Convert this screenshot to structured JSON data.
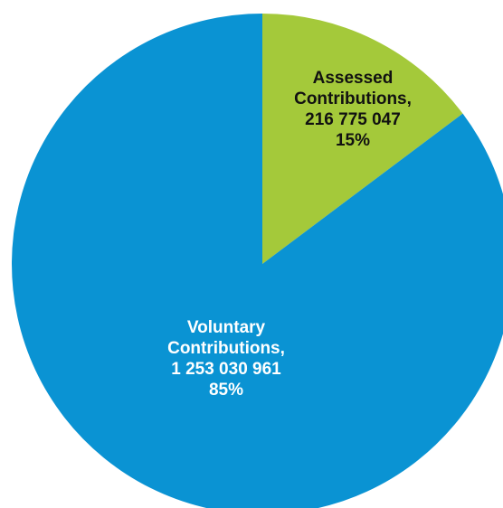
{
  "chart_data": {
    "type": "pie",
    "slices": [
      {
        "label": "Assessed Contributions,",
        "value": 216775047,
        "value_text": "216 775 047",
        "percent": 15,
        "percent_text": "15%",
        "color": "#a4c93a",
        "label_color": "#111111"
      },
      {
        "label": "Voluntary Contributions,",
        "value": 1253030961,
        "value_text": "1 253 030 961",
        "percent": 85,
        "percent_text": "85%",
        "color": "#0a93d3",
        "label_color": "#ffffff"
      }
    ]
  }
}
